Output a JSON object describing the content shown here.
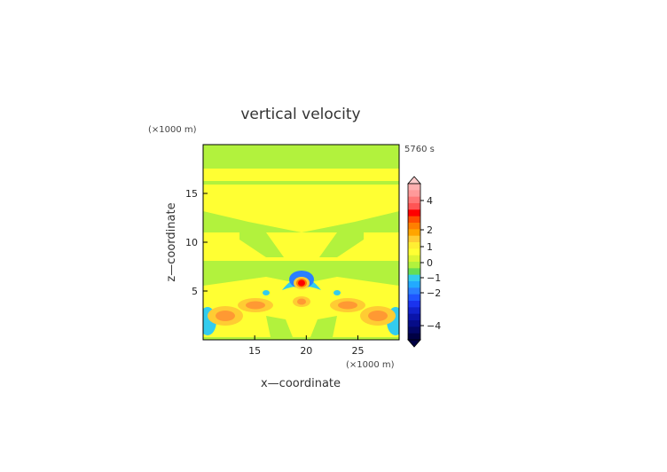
{
  "chart_data": {
    "type": "heatmap",
    "title": "vertical velocity",
    "time_label": "5760 s",
    "xlabel": "x—coordinate",
    "ylabel": "z—coordinate",
    "x_unit": "(×1000 m)",
    "z_unit": "(×1000 m)",
    "xlim": [
      10,
      29
    ],
    "ylim": [
      0,
      20
    ],
    "x_ticks": [
      "15",
      "20",
      "25"
    ],
    "y_ticks": [
      "5",
      "10",
      "15"
    ],
    "colorbar_labels": [
      "4",
      "2",
      "1",
      "0",
      "−1",
      "−2",
      "−4"
    ],
    "features": [
      {
        "kind": "updraft",
        "x": 20,
        "z": 6.0,
        "value": 2.5
      },
      {
        "kind": "downdraft_ring",
        "x": 20,
        "z": 6.3,
        "value": -1.2
      },
      {
        "kind": "updraft",
        "x": 20,
        "z": 4.0,
        "value": 1.6
      },
      {
        "kind": "updraft",
        "x": 15.2,
        "z": 4.0,
        "value": 1.0
      },
      {
        "kind": "updraft",
        "x": 24.8,
        "z": 4.0,
        "value": 1.0
      },
      {
        "kind": "updraft",
        "x": 12.3,
        "z": 3.0,
        "value": 1.1
      },
      {
        "kind": "updraft",
        "x": 27.7,
        "z": 3.0,
        "value": 1.1
      },
      {
        "kind": "downdraft",
        "x": 10.8,
        "z": 2.5,
        "value": -0.9
      },
      {
        "kind": "downdraft",
        "x": 28.4,
        "z": 2.5,
        "value": -0.9
      }
    ]
  }
}
